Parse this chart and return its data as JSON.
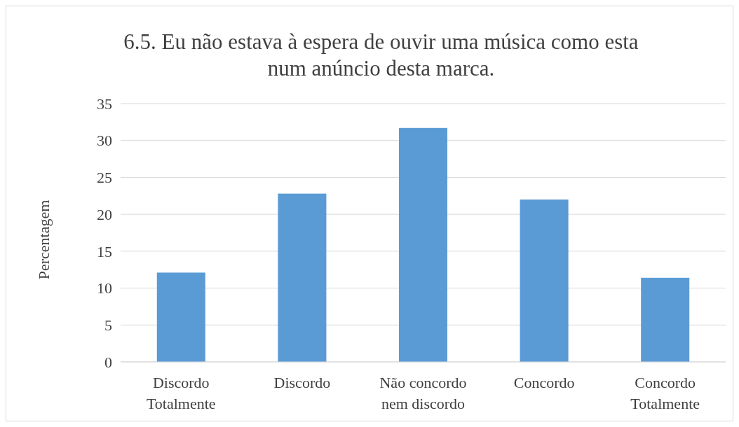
{
  "chart_data": {
    "type": "bar",
    "title": "6.5. Eu não estava à espera de ouvir uma música como esta num anúncio desta marca.",
    "ylabel": "Percentagem",
    "categories": [
      "Discordo Totalmente",
      "Discordo",
      "Não concordo nem discordo",
      "Concordo",
      "Concordo Totalmente"
    ],
    "values": [
      12.1,
      22.8,
      31.7,
      22.0,
      11.4
    ],
    "color": "#5b9bd5",
    "ylim": [
      0,
      35
    ],
    "yticks": [
      0,
      5,
      10,
      15,
      20,
      25,
      30,
      35
    ],
    "grid": "y"
  }
}
